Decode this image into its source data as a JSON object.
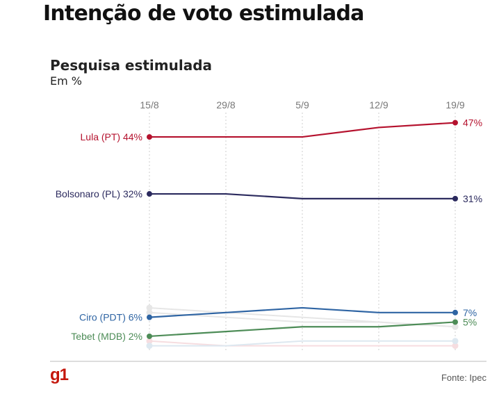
{
  "header": {
    "title": "Intenção de voto estimulada"
  },
  "chart_data": {
    "type": "line",
    "title": "Pesquisa estimulada",
    "subtitle": "Em %",
    "x": [
      "15/8",
      "29/8",
      "5/9",
      "12/9",
      "19/9"
    ],
    "ylim": [
      0,
      47
    ],
    "grid": "vertical dotted",
    "series": [
      {
        "name": "Lula (PT)",
        "color": "#b5122e",
        "values": [
          44,
          44,
          44,
          46,
          47
        ],
        "start_label": "Lula (PT) 44%",
        "end_label": "47%",
        "highlight": true
      },
      {
        "name": "Bolsonaro (PL)",
        "color": "#2b2a5e",
        "values": [
          32,
          32,
          31,
          31,
          31
        ],
        "start_label": "Bolsonaro (PL) 32%",
        "end_label": "31%",
        "highlight": true
      },
      {
        "name": "Ciro (PDT)",
        "color": "#2e64a3",
        "values": [
          6,
          7,
          8,
          7,
          7
        ],
        "start_label": "Ciro (PDT) 6%",
        "end_label": "7%",
        "highlight": true
      },
      {
        "name": "Tebet (MDB)",
        "color": "#4d8c57",
        "values": [
          2,
          3,
          4,
          4,
          5
        ],
        "start_label": "Tebet (MDB) 2%",
        "end_label": "5%",
        "highlight": true
      },
      {
        "name": "other-1",
        "color": "#e6e6e6",
        "values": [
          8,
          7,
          6,
          5,
          4
        ],
        "highlight": false
      },
      {
        "name": "other-2",
        "color": "#e6e6e6",
        "values": [
          7,
          6,
          5,
          5,
          4
        ],
        "highlight": false
      },
      {
        "name": "other-3",
        "color": "#f6dde0",
        "values": [
          1,
          0,
          0,
          0,
          0
        ],
        "highlight": false
      },
      {
        "name": "other-4",
        "color": "#dde8f0",
        "values": [
          0,
          0,
          1,
          1,
          1
        ],
        "highlight": false
      }
    ]
  },
  "footer": {
    "logo": "g1",
    "source": "Fonte: Ipec"
  }
}
